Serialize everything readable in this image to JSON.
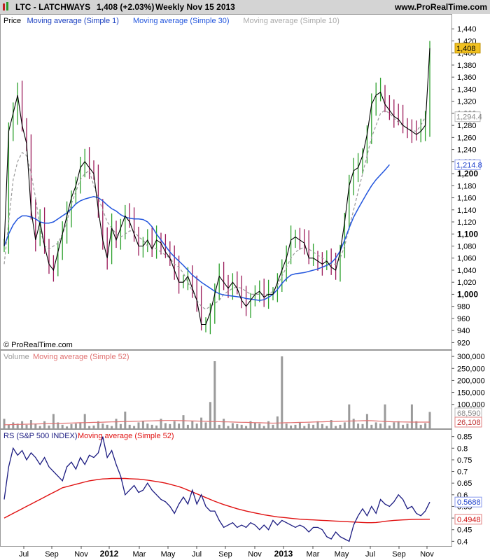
{
  "header": {
    "symbol": "LTC - LATCHWAYS",
    "last": "1,408 (+2.03%)",
    "period": "Weekly  Nov 15 2013",
    "site": "www.ProRealTime.com"
  },
  "colors": {
    "header_bg": "#d4d4d4",
    "up_bar": "#2ca02c",
    "down_bar": "#9b1b5a",
    "close_line": "#000000",
    "ma30": "#2255dd",
    "ma10": "#999999",
    "volume_bar": "#9a9a9a",
    "volume_ma": "#e07070",
    "rs_line": "#1a1a80",
    "rs_ma": "#e01010",
    "last_price_badge": "#f0c020"
  },
  "chart_data": [
    {
      "type": "line",
      "title": "Price",
      "legend": [
        "Price",
        "Moving average (Simple 1)",
        "Moving average (Simple 30)",
        "Moving average (Simple 10)"
      ],
      "watermark": "© ProRealTime.com",
      "ylim": [
        910,
        1460
      ],
      "yticks": [
        "1,440",
        "1,420",
        "1,400",
        "1,380",
        "1,360",
        "1,340",
        "1,320",
        "1,300",
        "1,280",
        "1,260",
        "1,240",
        "1,220",
        "1,200",
        "1,180",
        "1,160",
        "1,140",
        "1,120",
        "1,100",
        "1,080",
        "1,060",
        "1,040",
        "1,020",
        "1,000",
        "980",
        "960",
        "940",
        "920"
      ],
      "ytick_values": [
        1440,
        1420,
        1400,
        1380,
        1360,
        1340,
        1320,
        1300,
        1280,
        1260,
        1240,
        1220,
        1200,
        1180,
        1160,
        1140,
        1120,
        1100,
        1080,
        1060,
        1040,
        1020,
        1000,
        980,
        960,
        940,
        920
      ],
      "yticks_bold": [
        1200,
        1100,
        1000
      ],
      "grid": false,
      "close": [
        1080,
        1270,
        1300,
        1330,
        1280,
        1250,
        1140,
        1090,
        1120,
        1080,
        1050,
        1040,
        1070,
        1100,
        1130,
        1160,
        1180,
        1210,
        1220,
        1210,
        1200,
        1140,
        1090,
        1060,
        1110,
        1090,
        1110,
        1130,
        1120,
        1100,
        1080,
        1080,
        1090,
        1075,
        1090,
        1085,
        1070,
        1060,
        1040,
        1020,
        1020,
        1030,
        1010,
        990,
        950,
        950,
        970,
        1000,
        1030,
        1020,
        1010,
        1020,
        1010,
        990,
        980,
        990,
        1000,
        1005,
        995,
        1000,
        1000,
        1020,
        1040,
        1060,
        1090,
        1095,
        1090,
        1085,
        1060,
        1060,
        1055,
        1050,
        1055,
        1045,
        1040,
        1070,
        1120,
        1180,
        1205,
        1210,
        1230,
        1265,
        1315,
        1330,
        1335,
        1315,
        1305,
        1295,
        1290,
        1280,
        1275,
        1270,
        1265,
        1270,
        1280,
        1408
      ],
      "ma10": [
        1050,
        1120,
        1190,
        1220,
        1235,
        1230,
        1200,
        1160,
        1110,
        1080,
        1075,
        1080,
        1085,
        1100,
        1120,
        1150,
        1170,
        1190,
        1200,
        1205,
        1180,
        1160,
        1140,
        1120,
        1110,
        1100,
        1095,
        1100,
        1105,
        1105,
        1095,
        1090,
        1080,
        1080,
        1075,
        1070,
        1065,
        1060,
        1050,
        1045,
        1035,
        1020,
        1005,
        990,
        980,
        975,
        980,
        985,
        990,
        1000,
        1005,
        1010,
        1012,
        1010,
        1005,
        1000,
        1000,
        1000,
        1000,
        1000,
        1005,
        1015,
        1030,
        1045,
        1060,
        1070,
        1075,
        1078,
        1075,
        1070,
        1065,
        1060,
        1055,
        1050,
        1050,
        1060,
        1080,
        1110,
        1140,
        1170,
        1200,
        1230,
        1260,
        1280,
        1300,
        1305,
        1300,
        1292,
        1285,
        1280,
        1275,
        1272,
        1270,
        1280,
        1294
      ],
      "ma30": [
        1080,
        1100,
        1115,
        1125,
        1130,
        1130,
        1128,
        1125,
        1120,
        1118,
        1118,
        1120,
        1125,
        1130,
        1135,
        1142,
        1150,
        1155,
        1158,
        1160,
        1162,
        1160,
        1155,
        1148,
        1142,
        1138,
        1132,
        1128,
        1126,
        1125,
        1125,
        1124,
        1120,
        1112,
        1100,
        1090,
        1080,
        1070,
        1062,
        1055,
        1048,
        1040,
        1032,
        1026,
        1020,
        1015,
        1010,
        1005,
        1001,
        999,
        998,
        997,
        996,
        995,
        993,
        992,
        991,
        990,
        991,
        995,
        1000,
        1008,
        1018,
        1026,
        1032,
        1034,
        1035,
        1036,
        1038,
        1040,
        1042,
        1045,
        1048,
        1052,
        1060,
        1072,
        1090,
        1110,
        1128,
        1142,
        1155,
        1168,
        1180,
        1190,
        1198,
        1206,
        1214.8
      ]
    },
    {
      "type": "bar",
      "title": "Volume",
      "legend": [
        "Volume",
        "Moving average (Simple 52)"
      ],
      "ylim": [
        0,
        315000
      ],
      "yticks": [
        "300,000",
        "250,000",
        "200,000",
        "150,000",
        "100,000"
      ],
      "ytick_values": [
        300000,
        250000,
        200000,
        150000,
        100000
      ],
      "last_values": [
        "68,590",
        "26,108"
      ],
      "values": [
        40000,
        15000,
        25000,
        20000,
        30000,
        15000,
        35000,
        20000,
        10000,
        30000,
        12000,
        60000,
        25000,
        15000,
        8000,
        18000,
        20000,
        25000,
        60000,
        10000,
        12000,
        30000,
        20000,
        15000,
        10000,
        40000,
        18000,
        70000,
        15000,
        10000,
        25000,
        30000,
        20000,
        15000,
        12000,
        40000,
        22000,
        18000,
        30000,
        20000,
        55000,
        15000,
        30000,
        20000,
        45000,
        25000,
        110000,
        280000,
        15000,
        40000,
        10000,
        22000,
        18000,
        15000,
        10000,
        30000,
        25000,
        20000,
        10000,
        30000,
        15000,
        50000,
        300000,
        20000,
        12000,
        15000,
        25000,
        10000,
        20000,
        15000,
        30000,
        18000,
        10000,
        35000,
        10000,
        15000,
        25000,
        100000,
        40000,
        20000,
        18000,
        60000,
        15000,
        25000,
        20000,
        100000,
        12000,
        25000,
        30000,
        15000,
        20000,
        100000,
        30000,
        15000,
        22000,
        68590
      ],
      "ma52": [
        15000,
        15500,
        16000,
        16500,
        17000,
        17500,
        18000,
        18500,
        19000,
        19500,
        20000,
        20500,
        21000,
        21500,
        22000,
        22500,
        23000,
        23500,
        24000,
        24500,
        25000,
        25500,
        26000,
        26500,
        27000,
        27500,
        28000,
        28500,
        29000,
        29500,
        30000,
        30500,
        31000,
        31500,
        32000,
        32500,
        33000,
        33000,
        33000,
        32500,
        32000,
        31500,
        31000,
        30500,
        30000,
        29500,
        29000,
        28500,
        28000,
        27500,
        27000,
        26500,
        26000,
        25500,
        25000,
        24500,
        24000,
        23500,
        23000,
        22500,
        22000,
        22500,
        23000,
        23500,
        24000,
        24500,
        25000,
        25500,
        26000,
        26500,
        27000,
        27500,
        28000,
        28500,
        29000,
        29500,
        30000,
        30500,
        31000,
        31500,
        32000,
        32500,
        32000,
        31000,
        30000,
        29000,
        28000,
        27500,
        27000,
        26800,
        26500,
        26300,
        26200,
        26150,
        26120,
        26108
      ]
    },
    {
      "type": "line",
      "title": "RS (S&P 500 INDEX)",
      "legend": [
        "RS (S&P 500 INDEX)",
        "Moving average (Simple 52)"
      ],
      "ylim": [
        0.38,
        0.87
      ],
      "yticks": [
        "0.85",
        "0.8",
        "0.75",
        "0.7",
        "0.65",
        "0.6",
        "0.55",
        "0.5",
        "0.45",
        "0.4"
      ],
      "ytick_values": [
        0.85,
        0.8,
        0.75,
        0.7,
        0.65,
        0.6,
        0.55,
        0.5,
        0.45,
        0.4
      ],
      "last_values": [
        "0.5688",
        "0.4948"
      ],
      "series": [
        {
          "name": "RS (S&P 500 INDEX)",
          "values": [
            0.58,
            0.72,
            0.8,
            0.77,
            0.79,
            0.75,
            0.78,
            0.76,
            0.73,
            0.76,
            0.72,
            0.7,
            0.68,
            0.66,
            0.72,
            0.74,
            0.71,
            0.76,
            0.73,
            0.77,
            0.76,
            0.78,
            0.85,
            0.76,
            0.79,
            0.73,
            0.68,
            0.6,
            0.62,
            0.64,
            0.61,
            0.62,
            0.65,
            0.62,
            0.6,
            0.58,
            0.57,
            0.55,
            0.52,
            0.56,
            0.59,
            0.56,
            0.62,
            0.56,
            0.6,
            0.55,
            0.53,
            0.53,
            0.49,
            0.46,
            0.47,
            0.48,
            0.46,
            0.47,
            0.46,
            0.48,
            0.47,
            0.45,
            0.47,
            0.45,
            0.49,
            0.47,
            0.49,
            0.48,
            0.47,
            0.46,
            0.47,
            0.46,
            0.44,
            0.46,
            0.46,
            0.45,
            0.42,
            0.41,
            0.44,
            0.42,
            0.41,
            0.4,
            0.47,
            0.51,
            0.54,
            0.51,
            0.55,
            0.52,
            0.58,
            0.56,
            0.55,
            0.57,
            0.6,
            0.58,
            0.54,
            0.55,
            0.52,
            0.51,
            0.53,
            0.5688
          ]
        },
        {
          "name": "Moving average (Simple 52)",
          "values": [
            0.5,
            0.51,
            0.52,
            0.53,
            0.54,
            0.55,
            0.56,
            0.57,
            0.58,
            0.59,
            0.6,
            0.61,
            0.62,
            0.63,
            0.635,
            0.64,
            0.645,
            0.65,
            0.655,
            0.66,
            0.663,
            0.666,
            0.668,
            0.669,
            0.67,
            0.67,
            0.67,
            0.67,
            0.669,
            0.668,
            0.667,
            0.665,
            0.663,
            0.66,
            0.657,
            0.654,
            0.65,
            0.645,
            0.64,
            0.635,
            0.628,
            0.62,
            0.612,
            0.604,
            0.596,
            0.588,
            0.58,
            0.572,
            0.565,
            0.558,
            0.552,
            0.546,
            0.54,
            0.535,
            0.53,
            0.526,
            0.522,
            0.518,
            0.514,
            0.511,
            0.508,
            0.505,
            0.503,
            0.501,
            0.499,
            0.497,
            0.495,
            0.494,
            0.493,
            0.492,
            0.491,
            0.49,
            0.489,
            0.488,
            0.487,
            0.486,
            0.485,
            0.484,
            0.483,
            0.482,
            0.481,
            0.48,
            0.48,
            0.481,
            0.483,
            0.486,
            0.488,
            0.49,
            0.491,
            0.492,
            0.493,
            0.494,
            0.4945,
            0.4946,
            0.4947,
            0.4948
          ]
        }
      ]
    }
  ],
  "x_axis": {
    "labels": [
      "Jul",
      "Sep",
      "Nov",
      "2012",
      "Mar",
      "May",
      "Jul",
      "Sep",
      "Nov",
      "2013",
      "Mar",
      "May",
      "Jul",
      "Sep",
      "Nov"
    ],
    "bold": [
      "2012",
      "2013"
    ]
  },
  "price_badges": {
    "last": "1,408",
    "ma10": "1,294.4",
    "ma30": "1,214.8"
  }
}
